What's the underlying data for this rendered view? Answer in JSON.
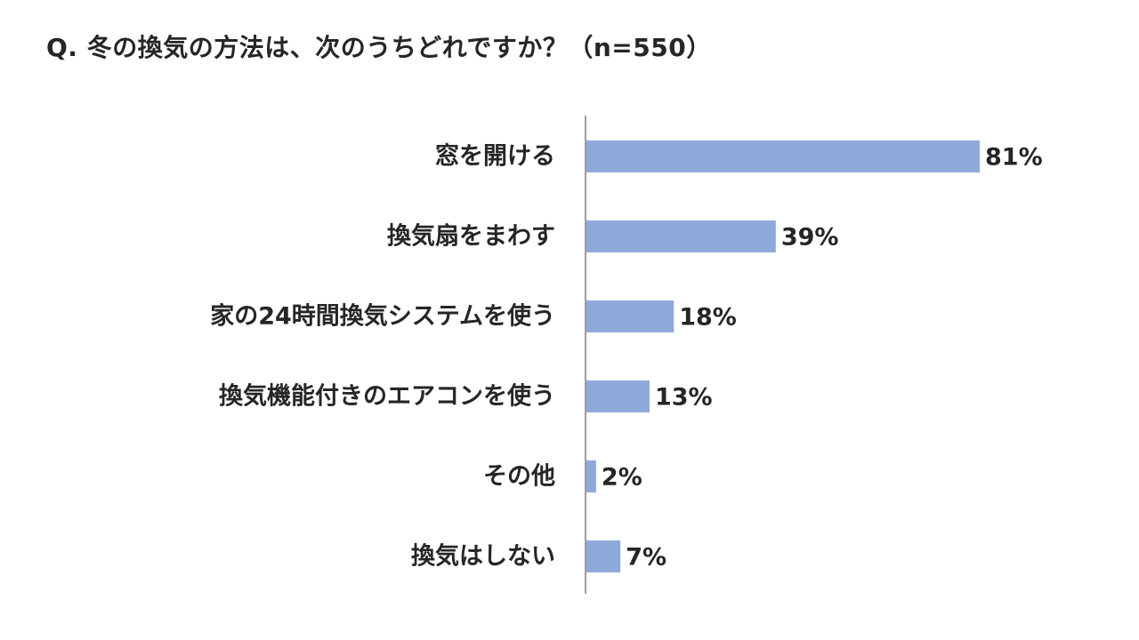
{
  "chart_data": {
    "type": "bar",
    "orientation": "horizontal",
    "title": "Q. 冬の換気の方法は、次のうちどれですか？（n=550）",
    "categories": [
      "窓を開ける",
      "換気扇をまわす",
      "家の24時間換気システムを使う",
      "換気機能付きのエアコンを使う",
      "その他",
      "換気はしない"
    ],
    "values": [
      81,
      39,
      18,
      13,
      2,
      7
    ],
    "data_labels": [
      "81%",
      "39%",
      "18%",
      "13%",
      "2%",
      "7%"
    ],
    "unit": "%",
    "xlim": [
      0,
      100
    ],
    "grid": false,
    "legend": "none",
    "bar_color": "#8eaadb",
    "axis_color": "#7f7f7f",
    "text_color": "#262626"
  }
}
